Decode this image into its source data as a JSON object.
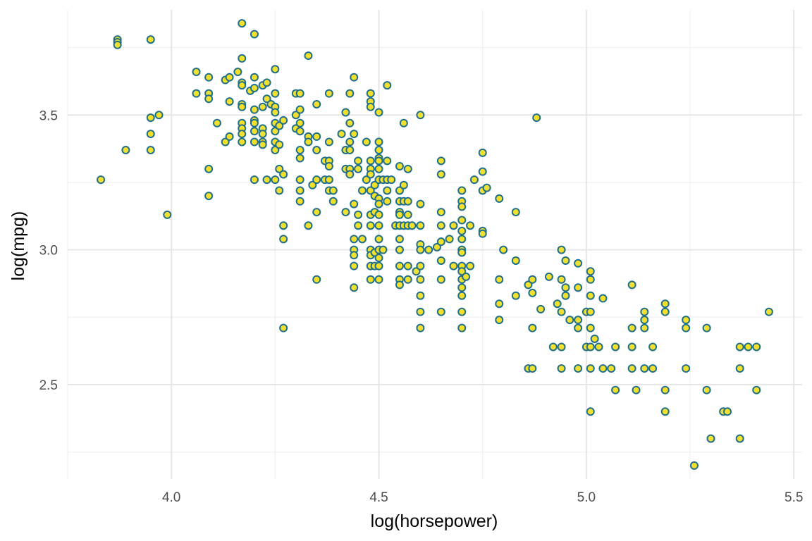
{
  "chart_data": {
    "type": "scatter",
    "title": "",
    "xlabel": "log(horsepower)",
    "ylabel": "log(mpg)",
    "xlim": [
      3.75,
      5.52
    ],
    "ylim": [
      2.15,
      3.89
    ],
    "x_ticks": [
      4.0,
      4.5,
      5.0,
      5.5
    ],
    "x_tick_labels": [
      "4.0",
      "4.5",
      "5.0",
      "5.5"
    ],
    "y_ticks": [
      2.5,
      3.0,
      3.5
    ],
    "y_tick_labels": [
      "2.5",
      "3.0",
      "3.5"
    ],
    "grid": true,
    "legend": "none",
    "colors": {
      "fill": "#f2e02f",
      "stroke": "#1f6f8b",
      "grid": "#e6e6e6"
    },
    "points": [
      [
        3.83,
        3.26
      ],
      [
        3.87,
        3.78
      ],
      [
        3.87,
        3.77
      ],
      [
        3.87,
        3.76
      ],
      [
        3.89,
        3.37
      ],
      [
        3.95,
        3.78
      ],
      [
        3.95,
        3.49
      ],
      [
        3.95,
        3.43
      ],
      [
        3.95,
        3.37
      ],
      [
        3.97,
        3.5
      ],
      [
        3.99,
        3.13
      ],
      [
        4.06,
        3.66
      ],
      [
        4.06,
        3.58
      ],
      [
        4.09,
        3.64
      ],
      [
        4.09,
        3.58
      ],
      [
        4.09,
        3.56
      ],
      [
        4.09,
        3.3
      ],
      [
        4.09,
        3.2
      ],
      [
        4.11,
        3.47
      ],
      [
        4.13,
        3.63
      ],
      [
        4.13,
        3.4
      ],
      [
        4.14,
        3.64
      ],
      [
        4.14,
        3.55
      ],
      [
        4.14,
        3.42
      ],
      [
        4.16,
        3.66
      ],
      [
        4.17,
        3.84
      ],
      [
        4.17,
        3.71
      ],
      [
        4.17,
        3.62
      ],
      [
        4.17,
        3.61
      ],
      [
        4.17,
        3.54
      ],
      [
        4.17,
        3.53
      ],
      [
        4.17,
        3.47
      ],
      [
        4.17,
        3.45
      ],
      [
        4.17,
        3.43
      ],
      [
        4.17,
        3.4
      ],
      [
        4.19,
        3.59
      ],
      [
        4.2,
        3.8
      ],
      [
        4.2,
        3.64
      ],
      [
        4.2,
        3.6
      ],
      [
        4.2,
        3.52
      ],
      [
        4.2,
        3.48
      ],
      [
        4.2,
        3.47
      ],
      [
        4.2,
        3.44
      ],
      [
        4.2,
        3.4
      ],
      [
        4.2,
        3.26
      ],
      [
        4.22,
        3.61
      ],
      [
        4.22,
        3.53
      ],
      [
        4.22,
        3.45
      ],
      [
        4.22,
        3.43
      ],
      [
        4.22,
        3.4
      ],
      [
        4.22,
        3.39
      ],
      [
        4.23,
        3.62
      ],
      [
        4.23,
        3.56
      ],
      [
        4.23,
        3.26
      ],
      [
        4.24,
        3.54
      ],
      [
        4.25,
        3.67
      ],
      [
        4.25,
        3.58
      ],
      [
        4.25,
        3.53
      ],
      [
        4.25,
        3.51
      ],
      [
        4.25,
        3.47
      ],
      [
        4.25,
        3.44
      ],
      [
        4.25,
        3.4
      ],
      [
        4.25,
        3.37
      ],
      [
        4.25,
        3.26
      ],
      [
        4.26,
        3.46
      ],
      [
        4.26,
        3.39
      ],
      [
        4.26,
        3.3
      ],
      [
        4.26,
        3.22
      ],
      [
        4.27,
        3.48
      ],
      [
        4.27,
        3.28
      ],
      [
        4.27,
        3.09
      ],
      [
        4.27,
        3.04
      ],
      [
        4.27,
        2.71
      ],
      [
        4.3,
        3.58
      ],
      [
        4.3,
        3.5
      ],
      [
        4.3,
        3.45
      ],
      [
        4.31,
        3.58
      ],
      [
        4.31,
        3.52
      ],
      [
        4.31,
        3.47
      ],
      [
        4.31,
        3.44
      ],
      [
        4.31,
        3.37
      ],
      [
        4.31,
        3.34
      ],
      [
        4.31,
        3.26
      ],
      [
        4.31,
        3.22
      ],
      [
        4.31,
        3.18
      ],
      [
        4.33,
        3.72
      ],
      [
        4.33,
        3.42
      ],
      [
        4.33,
        3.4
      ],
      [
        4.33,
        3.09
      ],
      [
        4.34,
        3.24
      ],
      [
        4.35,
        3.54
      ],
      [
        4.35,
        3.42
      ],
      [
        4.35,
        3.37
      ],
      [
        4.35,
        3.26
      ],
      [
        4.35,
        3.14
      ],
      [
        4.35,
        2.89
      ],
      [
        4.37,
        3.33
      ],
      [
        4.37,
        3.26
      ],
      [
        4.38,
        3.58
      ],
      [
        4.38,
        3.4
      ],
      [
        4.38,
        3.33
      ],
      [
        4.38,
        3.31
      ],
      [
        4.38,
        3.26
      ],
      [
        4.38,
        3.22
      ],
      [
        4.39,
        3.22
      ],
      [
        4.39,
        3.18
      ],
      [
        4.41,
        3.43
      ],
      [
        4.42,
        3.51
      ],
      [
        4.42,
        3.37
      ],
      [
        4.42,
        3.3
      ],
      [
        4.42,
        3.14
      ],
      [
        4.43,
        3.58
      ],
      [
        4.43,
        3.47
      ],
      [
        4.43,
        3.4
      ],
      [
        4.43,
        3.37
      ],
      [
        4.43,
        3.3
      ],
      [
        4.43,
        3.28
      ],
      [
        4.44,
        3.64
      ],
      [
        4.44,
        3.43
      ],
      [
        4.44,
        3.17
      ],
      [
        4.44,
        3.04
      ],
      [
        4.44,
        3.0
      ],
      [
        4.44,
        2.98
      ],
      [
        4.44,
        2.94
      ],
      [
        4.44,
        2.86
      ],
      [
        4.45,
        3.33
      ],
      [
        4.45,
        3.3
      ],
      [
        4.45,
        3.13
      ],
      [
        4.45,
        3.09
      ],
      [
        4.46,
        3.04
      ],
      [
        4.46,
        3.22
      ],
      [
        4.47,
        3.4
      ],
      [
        4.47,
        3.26
      ],
      [
        4.48,
        3.58
      ],
      [
        4.48,
        3.55
      ],
      [
        4.48,
        3.53
      ],
      [
        4.48,
        3.33
      ],
      [
        4.48,
        3.3
      ],
      [
        4.48,
        3.28
      ],
      [
        4.48,
        3.22
      ],
      [
        4.48,
        3.13
      ],
      [
        4.48,
        3.09
      ],
      [
        4.48,
        3.0
      ],
      [
        4.48,
        2.98
      ],
      [
        4.48,
        2.94
      ],
      [
        4.48,
        2.89
      ],
      [
        4.49,
        3.24
      ],
      [
        4.49,
        3.2
      ],
      [
        4.49,
        3.14
      ],
      [
        4.49,
        2.99
      ],
      [
        4.49,
        2.94
      ],
      [
        4.5,
        3.51
      ],
      [
        4.5,
        3.4
      ],
      [
        4.5,
        3.37
      ],
      [
        4.5,
        3.34
      ],
      [
        4.5,
        3.33
      ],
      [
        4.5,
        3.3
      ],
      [
        4.5,
        3.26
      ],
      [
        4.5,
        3.19
      ],
      [
        4.5,
        3.17
      ],
      [
        4.5,
        3.13
      ],
      [
        4.5,
        3.09
      ],
      [
        4.5,
        3.04
      ],
      [
        4.5,
        3.0
      ],
      [
        4.5,
        2.97
      ],
      [
        4.5,
        2.94
      ],
      [
        4.5,
        2.89
      ],
      [
        4.51,
        3.26
      ],
      [
        4.51,
        3.0
      ],
      [
        4.52,
        3.61
      ],
      [
        4.52,
        3.33
      ],
      [
        4.52,
        3.26
      ],
      [
        4.52,
        3.22
      ],
      [
        4.52,
        3.18
      ],
      [
        4.53,
        3.26
      ],
      [
        4.54,
        3.09
      ],
      [
        4.55,
        3.31
      ],
      [
        4.55,
        3.22
      ],
      [
        4.55,
        3.18
      ],
      [
        4.55,
        3.14
      ],
      [
        4.55,
        3.13
      ],
      [
        4.55,
        3.09
      ],
      [
        4.55,
        3.04
      ],
      [
        4.55,
        3.0
      ],
      [
        4.55,
        2.94
      ],
      [
        4.55,
        2.89
      ],
      [
        4.55,
        2.87
      ],
      [
        4.56,
        3.47
      ],
      [
        4.56,
        3.24
      ],
      [
        4.56,
        3.18
      ],
      [
        4.56,
        3.09
      ],
      [
        4.57,
        3.3
      ],
      [
        4.57,
        3.18
      ],
      [
        4.57,
        3.13
      ],
      [
        4.57,
        3.09
      ],
      [
        4.57,
        2.94
      ],
      [
        4.57,
        2.89
      ],
      [
        4.58,
        3.09
      ],
      [
        4.59,
        2.92
      ],
      [
        4.6,
        3.5
      ],
      [
        4.6,
        3.17
      ],
      [
        4.6,
        3.09
      ],
      [
        4.6,
        3.02
      ],
      [
        4.6,
        3.0
      ],
      [
        4.6,
        2.94
      ],
      [
        4.6,
        2.89
      ],
      [
        4.6,
        2.83
      ],
      [
        4.6,
        2.77
      ],
      [
        4.6,
        2.71
      ],
      [
        4.62,
        3.0
      ],
      [
        4.64,
        3.01
      ],
      [
        4.65,
        3.33
      ],
      [
        4.65,
        3.28
      ],
      [
        4.65,
        3.14
      ],
      [
        4.65,
        3.09
      ],
      [
        4.65,
        3.03
      ],
      [
        4.65,
        2.96
      ],
      [
        4.65,
        2.89
      ],
      [
        4.65,
        2.77
      ],
      [
        4.67,
        3.04
      ],
      [
        4.68,
        3.09
      ],
      [
        4.68,
        2.94
      ],
      [
        4.7,
        3.22
      ],
      [
        4.7,
        3.18
      ],
      [
        4.7,
        3.16
      ],
      [
        4.7,
        3.11
      ],
      [
        4.7,
        3.07
      ],
      [
        4.7,
        3.04
      ],
      [
        4.7,
        3.0
      ],
      [
        4.7,
        2.99
      ],
      [
        4.7,
        2.94
      ],
      [
        4.7,
        2.92
      ],
      [
        4.7,
        2.89
      ],
      [
        4.7,
        2.86
      ],
      [
        4.7,
        2.83
      ],
      [
        4.7,
        2.77
      ],
      [
        4.7,
        2.71
      ],
      [
        4.71,
        2.9
      ],
      [
        4.72,
        3.09
      ],
      [
        4.72,
        2.94
      ],
      [
        4.73,
        3.26
      ],
      [
        4.75,
        3.36
      ],
      [
        4.75,
        3.29
      ],
      [
        4.75,
        3.22
      ],
      [
        4.75,
        3.07
      ],
      [
        4.75,
        3.06
      ],
      [
        4.76,
        3.23
      ],
      [
        4.79,
        3.19
      ],
      [
        4.79,
        2.89
      ],
      [
        4.79,
        2.8
      ],
      [
        4.79,
        2.74
      ],
      [
        4.8,
        3.0
      ],
      [
        4.83,
        3.14
      ],
      [
        4.83,
        2.96
      ],
      [
        4.83,
        2.83
      ],
      [
        4.86,
        2.87
      ],
      [
        4.86,
        2.56
      ],
      [
        4.87,
        2.89
      ],
      [
        4.87,
        2.84
      ],
      [
        4.87,
        2.71
      ],
      [
        4.87,
        2.56
      ],
      [
        4.88,
        3.49
      ],
      [
        4.89,
        2.78
      ],
      [
        4.91,
        2.9
      ],
      [
        4.92,
        2.64
      ],
      [
        4.93,
        2.8
      ],
      [
        4.94,
        3.0
      ],
      [
        4.94,
        2.89
      ],
      [
        4.94,
        2.77
      ],
      [
        4.94,
        2.64
      ],
      [
        4.94,
        2.56
      ],
      [
        4.95,
        2.96
      ],
      [
        4.95,
        2.86
      ],
      [
        4.95,
        2.83
      ],
      [
        4.96,
        2.74
      ],
      [
        4.98,
        2.95
      ],
      [
        4.98,
        2.86
      ],
      [
        4.98,
        2.71
      ],
      [
        4.98,
        2.74
      ],
      [
        4.98,
        2.56
      ],
      [
        5.0,
        2.64
      ],
      [
        5.0,
        2.77
      ],
      [
        5.01,
        2.92
      ],
      [
        5.01,
        2.89
      ],
      [
        5.01,
        2.83
      ],
      [
        5.01,
        2.77
      ],
      [
        5.01,
        2.71
      ],
      [
        5.01,
        2.64
      ],
      [
        5.01,
        2.56
      ],
      [
        5.01,
        2.4
      ],
      [
        5.02,
        2.67
      ],
      [
        5.03,
        2.64
      ],
      [
        5.04,
        2.82
      ],
      [
        5.04,
        2.56
      ],
      [
        5.06,
        2.56
      ],
      [
        5.07,
        2.64
      ],
      [
        5.07,
        2.48
      ],
      [
        5.11,
        2.87
      ],
      [
        5.11,
        2.71
      ],
      [
        5.11,
        2.64
      ],
      [
        5.11,
        2.56
      ],
      [
        5.12,
        2.48
      ],
      [
        5.14,
        2.77
      ],
      [
        5.14,
        2.74
      ],
      [
        5.14,
        2.71
      ],
      [
        5.14,
        2.56
      ],
      [
        5.16,
        2.64
      ],
      [
        5.16,
        2.56
      ],
      [
        5.19,
        2.8
      ],
      [
        5.19,
        2.77
      ],
      [
        5.19,
        2.48
      ],
      [
        5.19,
        2.4
      ],
      [
        5.24,
        2.74
      ],
      [
        5.24,
        2.71
      ],
      [
        5.24,
        2.56
      ],
      [
        5.26,
        2.2
      ],
      [
        5.29,
        2.71
      ],
      [
        5.29,
        2.48
      ],
      [
        5.3,
        2.3
      ],
      [
        5.33,
        2.4
      ],
      [
        5.34,
        2.4
      ],
      [
        5.37,
        2.64
      ],
      [
        5.37,
        2.56
      ],
      [
        5.37,
        2.3
      ],
      [
        5.39,
        2.64
      ],
      [
        5.41,
        2.64
      ],
      [
        5.41,
        2.48
      ],
      [
        5.44,
        2.77
      ]
    ]
  }
}
